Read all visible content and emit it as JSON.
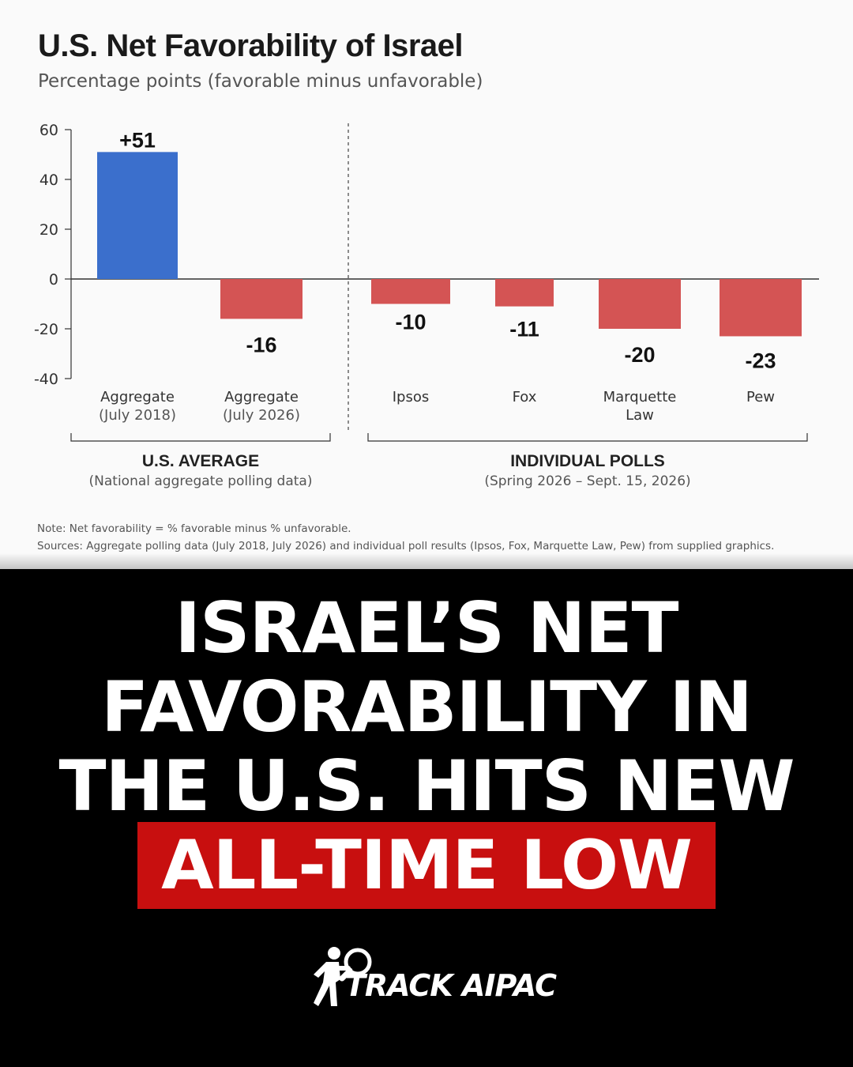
{
  "chart_data": {
    "type": "bar",
    "title": "U.S. Net Favorability of Israel",
    "subtitle": "Percentage points (favorable minus unfavorable)",
    "ylim": [
      -40,
      60
    ],
    "yticks": [
      "60",
      "40",
      "20",
      "0",
      "-20",
      "-40"
    ],
    "categories": [
      {
        "label": [
          "Aggregate",
          "(July 2018)"
        ],
        "value": 51,
        "data_label": "+51",
        "color": "#3b6fcc"
      },
      {
        "label": [
          "Aggregate",
          "(July 2026)"
        ],
        "value": -16,
        "data_label": "-16",
        "color": "#d45454"
      },
      {
        "label": [
          "Ipsos"
        ],
        "value": -10,
        "data_label": "-10",
        "color": "#d45454"
      },
      {
        "label": [
          "Fox"
        ],
        "value": -11,
        "data_label": "-11",
        "color": "#d45454"
      },
      {
        "label": [
          "Marquette",
          "Law"
        ],
        "value": -20,
        "data_label": "-20",
        "color": "#d45454"
      },
      {
        "label": [
          "Pew"
        ],
        "value": -23,
        "data_label": "-23",
        "color": "#d45454"
      }
    ],
    "groups": [
      {
        "title": "U.S. AVERAGE",
        "subtitle": "(National aggregate polling data)"
      },
      {
        "title": "INDIVIDUAL POLLS",
        "subtitle": "(Spring 2026 – Sept. 15, 2026)"
      }
    ],
    "note": "Note: Net favorability = % favorable minus % unfavorable.",
    "sources": "Sources: Aggregate polling data (July 2018, July 2026) and individual poll results (Ipsos, Fox, Marquette Law, Pew) from supplied graphics."
  },
  "headline": {
    "lines": [
      "ISRAEL’S NET",
      "FAVORABILITY IN",
      "THE U.S. HITS NEW"
    ],
    "highlight": "ALL-TIME LOW",
    "highlight_color": "#c80f0f"
  },
  "brand": {
    "name": "TRACK AIPAC",
    "icon": "magnifier-person-icon"
  }
}
